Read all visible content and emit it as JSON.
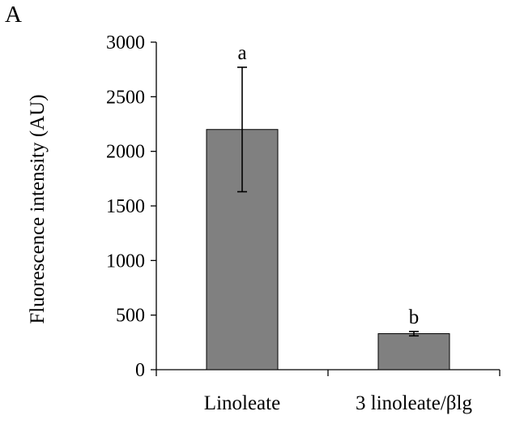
{
  "panel_label": "A",
  "chart_data": {
    "type": "bar",
    "categories": [
      "Linoleate",
      "3 linoleate/βlg"
    ],
    "values": [
      2200,
      330
    ],
    "error": [
      570,
      20
    ],
    "significance_labels": [
      "a",
      "b"
    ],
    "title": "",
    "xlabel": "",
    "ylabel": "Fluorescence intensity (AU)",
    "ylim": [
      0,
      3000
    ],
    "yticks": [
      0,
      500,
      1000,
      1500,
      2000,
      2500,
      3000
    ],
    "grid": false,
    "bar_color": "#808080",
    "bar_edge_color": "#000000"
  }
}
